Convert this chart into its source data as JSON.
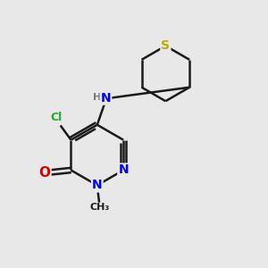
{
  "background_color": "#e8e8e8",
  "bond_color": "#1a1a1a",
  "atom_colors": {
    "N": "#0000ee",
    "O": "#dd0000",
    "Cl": "#22aa22",
    "S": "#bbaa00",
    "H": "#777777",
    "C": "#1a1a1a"
  },
  "figsize": [
    3.0,
    3.0
  ],
  "dpi": 100
}
